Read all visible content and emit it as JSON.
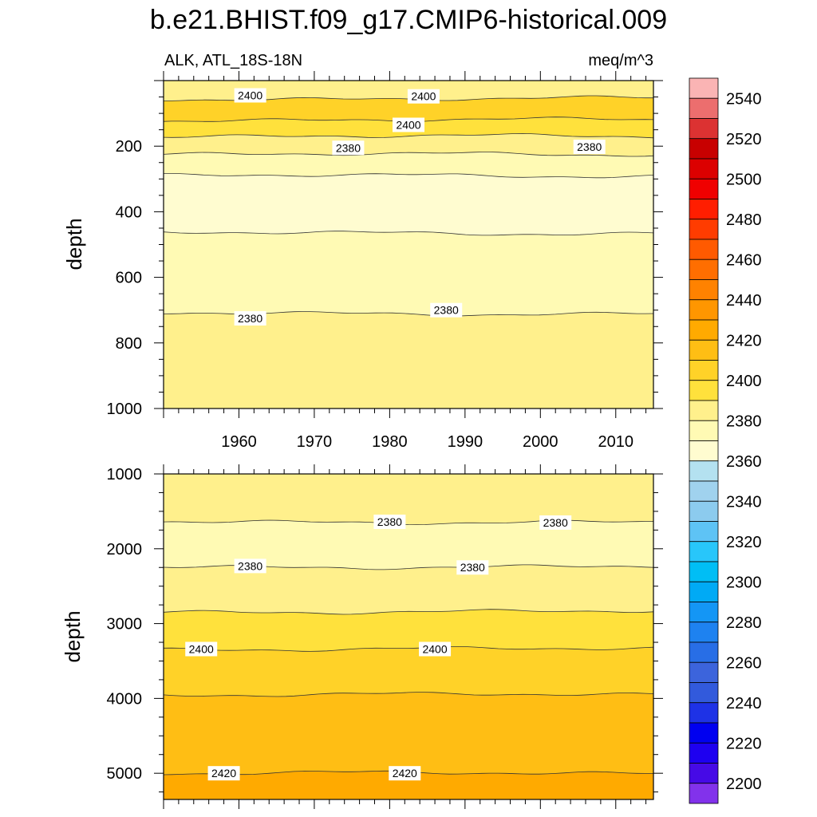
{
  "chart_data": [
    {
      "type": "heatmap",
      "panel": "upper",
      "title": "b.e21.BHIST.f09_g17.CMIP6-historical.009",
      "left_string": "ALK, ATL_18S-18N",
      "right_string": "meq/m^3",
      "xlabel": "",
      "ylabel": "depth",
      "xlim": [
        1950,
        2015
      ],
      "ylim": [
        1000,
        0
      ],
      "xticks": [
        "1960",
        "1970",
        "1980",
        "1990",
        "2000",
        "2010"
      ],
      "yticks": [
        "200",
        "400",
        "600",
        "800",
        "1000"
      ],
      "bands": [
        {
          "top": 0,
          "bottom": 55,
          "value": 2385
        },
        {
          "top": 55,
          "bottom": 120,
          "value": 2405
        },
        {
          "top": 120,
          "bottom": 170,
          "value": 2395
        },
        {
          "top": 170,
          "bottom": 225,
          "value": 2385
        },
        {
          "top": 225,
          "bottom": 290,
          "value": 2375
        },
        {
          "top": 290,
          "bottom": 465,
          "value": 2365
        },
        {
          "top": 465,
          "bottom": 710,
          "value": 2375
        },
        {
          "top": 710,
          "bottom": 1000,
          "value": 2385
        }
      ],
      "contour_labels": [
        {
          "x": 1961.5,
          "y": 45,
          "text": "2400"
        },
        {
          "x": 1984.5,
          "y": 48,
          "text": "2400"
        },
        {
          "x": 1982.5,
          "y": 135,
          "text": "2400"
        },
        {
          "x": 1974.5,
          "y": 205,
          "text": "2380"
        },
        {
          "x": 2006.5,
          "y": 202,
          "text": "2380"
        },
        {
          "x": 1961.5,
          "y": 725,
          "text": "2380"
        },
        {
          "x": 1987.5,
          "y": 700,
          "text": "2380"
        }
      ]
    },
    {
      "type": "heatmap",
      "panel": "lower",
      "xlabel": "",
      "ylabel": "depth",
      "xlim": [
        1950,
        2015
      ],
      "ylim": [
        5350,
        1000
      ],
      "yticks": [
        "1000",
        "2000",
        "3000",
        "4000",
        "5000"
      ],
      "bands": [
        {
          "top": 1000,
          "bottom": 1640,
          "value": 2385
        },
        {
          "top": 1640,
          "bottom": 2240,
          "value": 2375
        },
        {
          "top": 2240,
          "bottom": 2840,
          "value": 2385
        },
        {
          "top": 2840,
          "bottom": 3340,
          "value": 2395
        },
        {
          "top": 3340,
          "bottom": 3950,
          "value": 2405
        },
        {
          "top": 3950,
          "bottom": 5000,
          "value": 2415
        },
        {
          "top": 5000,
          "bottom": 5350,
          "value": 2425
        }
      ],
      "contour_labels": [
        {
          "x": 1980,
          "y": 1640,
          "text": "2380"
        },
        {
          "x": 2002,
          "y": 1650,
          "text": "2380"
        },
        {
          "x": 1961.5,
          "y": 2230,
          "text": "2380"
        },
        {
          "x": 1991,
          "y": 2250,
          "text": "2380"
        },
        {
          "x": 1955,
          "y": 3340,
          "text": "2400"
        },
        {
          "x": 1986,
          "y": 3340,
          "text": "2400"
        },
        {
          "x": 1958,
          "y": 5000,
          "text": "2420"
        },
        {
          "x": 1982,
          "y": 5000,
          "text": "2420"
        }
      ]
    }
  ],
  "colorbar": {
    "labels": [
      "2200",
      "2220",
      "2240",
      "2260",
      "2280",
      "2300",
      "2320",
      "2340",
      "2360",
      "2380",
      "2400",
      "2420",
      "2440",
      "2460",
      "2480",
      "2500",
      "2520",
      "2540"
    ],
    "colors_top_to_bottom": [
      "#fab4b4",
      "#ec6e6e",
      "#dc3232",
      "#c80000",
      "#dc0000",
      "#f00000",
      "#ff1e00",
      "#ff3c00",
      "#ff5a00",
      "#ff6e00",
      "#ff8200",
      "#ff9600",
      "#ffaa00",
      "#ffbe14",
      "#ffd228",
      "#ffe13c",
      "#fff08c",
      "#fffab4",
      "#fffcd0",
      "#b4e1f0",
      "#a0d2ee",
      "#8ccbee",
      "#5ec3f5",
      "#28c6fa",
      "#00bef5",
      "#00aaf5",
      "#1496f5",
      "#1e82f0",
      "#286ee6",
      "#3c64dc",
      "#325adc",
      "#1e32e6",
      "#0000f0",
      "#1e00f0",
      "#460ae6",
      "#8232eb"
    ]
  }
}
